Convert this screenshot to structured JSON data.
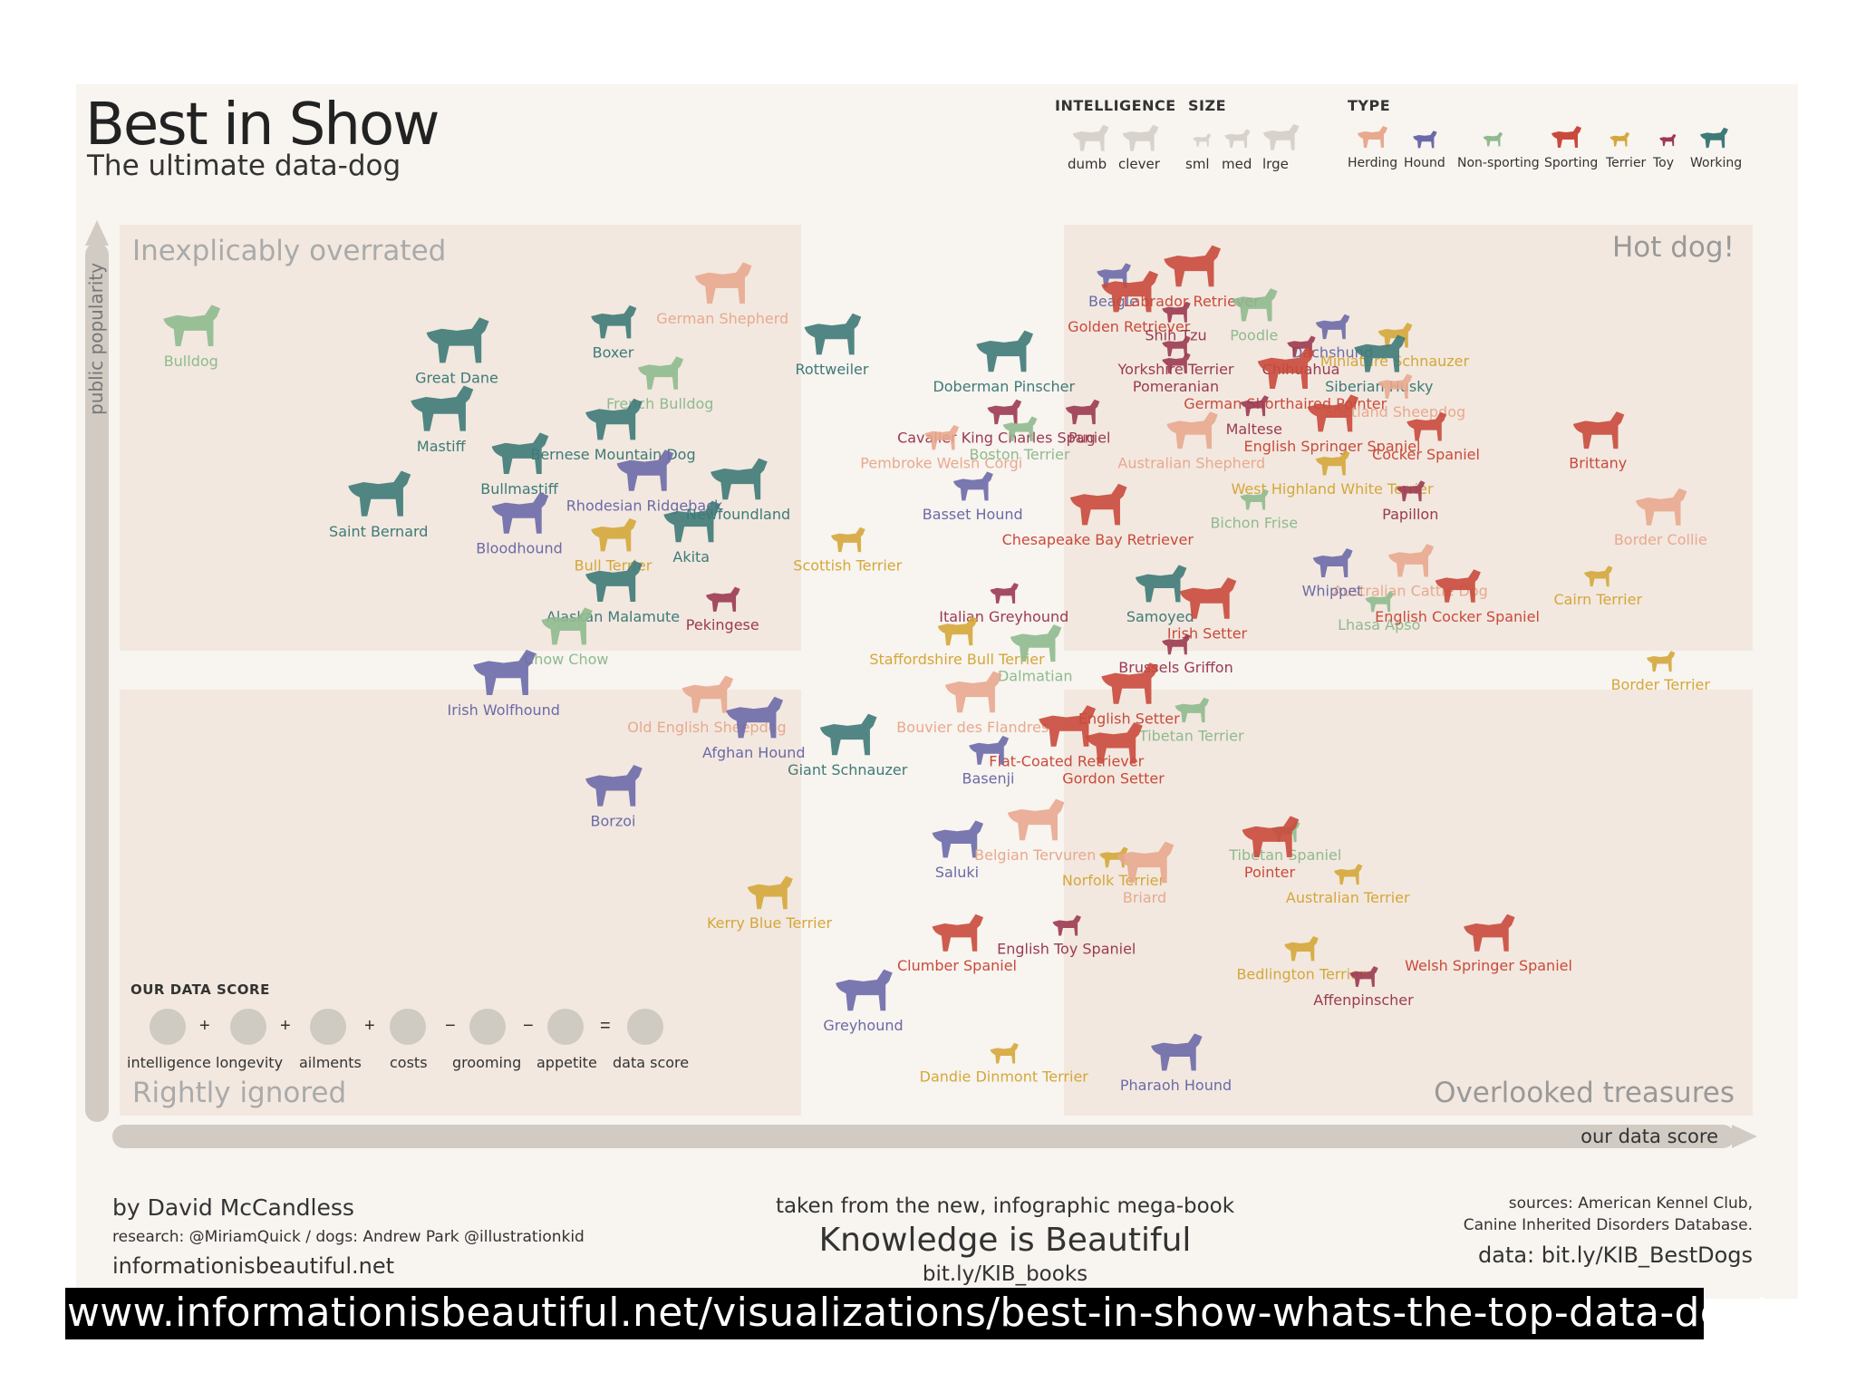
{
  "header": {
    "title": "Best in Show",
    "subtitle": "The ultimate data-dog"
  },
  "legend": {
    "intelligence_title": "INTELLIGENCE",
    "intelligence_items": [
      "dumb",
      "clever"
    ],
    "size_title": "SIZE",
    "size_items": [
      "sml",
      "med",
      "lrge"
    ],
    "type_title": "TYPE",
    "type_items": [
      {
        "label": "Herding",
        "color": "#e8a98f"
      },
      {
        "label": "Hound",
        "color": "#6b6aa8"
      },
      {
        "label": "Non-sporting",
        "color": "#8fba8f"
      },
      {
        "label": "Sporting",
        "color": "#c94a3c"
      },
      {
        "label": "Terrier",
        "color": "#d4a73a"
      },
      {
        "label": "Toy",
        "color": "#9b3a52"
      },
      {
        "label": "Working",
        "color": "#3e7a78"
      }
    ]
  },
  "data_score": {
    "title": "OUR DATA SCORE",
    "items": [
      "intelligence",
      "longevity",
      "ailments",
      "costs",
      "grooming",
      "appetite",
      "data score"
    ],
    "operators": [
      "+",
      "+",
      "+",
      "−",
      "−",
      "="
    ]
  },
  "footer": {
    "author": "by David McCandless",
    "research": "research: @MiriamQuick / dogs: Andrew Park @illustrationkid",
    "site": "informationisbeautiful.net",
    "book_intro": "taken from the new, infographic mega-book",
    "book_title": "Knowledge is Beautiful",
    "book_link": "bit.ly/KIB_books",
    "sources_line1": "sources: American Kennel Club,",
    "sources_line2": "Canine Inherited Disorders Database.",
    "data_link": "data: bit.ly/KIB_BestDogs"
  },
  "url_bar": "www.informationisbeautiful.net/visualizations/best-in-show-whats-the-top-data-dog/",
  "chart_data": {
    "type": "scatter",
    "xlabel": "our data score",
    "ylabel": "public popularity",
    "quadrants": {
      "top_left": "Inexplicably overrated",
      "top_right": "Hot dog!",
      "bottom_left": "Rightly ignored",
      "bottom_right": "Overlooked treasures"
    },
    "type_colors": {
      "Herding": "#e8a98f",
      "Hound": "#6b6aa8",
      "Non-sporting": "#8fba8f",
      "Sporting": "#c94a3c",
      "Terrier": "#d4a73a",
      "Toy": "#9b3a52",
      "Working": "#3e7a78"
    },
    "points": [
      {
        "label": "Bulldog",
        "type": "Non-sporting",
        "size": 1.0,
        "x": 0.03,
        "y": 0.88
      },
      {
        "label": "Great Dane",
        "type": "Working",
        "size": 1.1,
        "x": 0.2,
        "y": 0.86
      },
      {
        "label": "Mastiff",
        "type": "Working",
        "size": 1.1,
        "x": 0.19,
        "y": 0.78
      },
      {
        "label": "Bullmastiff",
        "type": "Working",
        "size": 1.0,
        "x": 0.24,
        "y": 0.73
      },
      {
        "label": "Boxer",
        "type": "Working",
        "size": 0.8,
        "x": 0.3,
        "y": 0.89
      },
      {
        "label": "German Shepherd",
        "type": "Herding",
        "size": 1.0,
        "x": 0.37,
        "y": 0.93
      },
      {
        "label": "French Bulldog",
        "type": "Non-sporting",
        "size": 0.8,
        "x": 0.33,
        "y": 0.83
      },
      {
        "label": "Bernese Mountain Dog",
        "type": "Working",
        "size": 1.0,
        "x": 0.3,
        "y": 0.77
      },
      {
        "label": "Rhodesian Ridgeback",
        "type": "Hound",
        "size": 1.0,
        "x": 0.32,
        "y": 0.71
      },
      {
        "label": "Newfoundland",
        "type": "Working",
        "size": 1.0,
        "x": 0.38,
        "y": 0.7
      },
      {
        "label": "Saint Bernard",
        "type": "Working",
        "size": 1.1,
        "x": 0.15,
        "y": 0.68
      },
      {
        "label": "Bloodhound",
        "type": "Hound",
        "size": 1.0,
        "x": 0.24,
        "y": 0.66
      },
      {
        "label": "Bull Terrier",
        "type": "Terrier",
        "size": 0.8,
        "x": 0.3,
        "y": 0.64
      },
      {
        "label": "Akita",
        "type": "Working",
        "size": 1.0,
        "x": 0.35,
        "y": 0.65
      },
      {
        "label": "Alaskan Malamute",
        "type": "Working",
        "size": 1.0,
        "x": 0.3,
        "y": 0.58
      },
      {
        "label": "Chow Chow",
        "type": "Non-sporting",
        "size": 0.9,
        "x": 0.27,
        "y": 0.53
      },
      {
        "label": "Pekingese",
        "type": "Toy",
        "size": 0.6,
        "x": 0.37,
        "y": 0.57
      },
      {
        "label": "Scottish Terrier",
        "type": "Terrier",
        "size": 0.6,
        "x": 0.45,
        "y": 0.64
      },
      {
        "label": "Rottweiler",
        "type": "Working",
        "size": 1.0,
        "x": 0.44,
        "y": 0.87
      },
      {
        "label": "Doberman Pinscher",
        "type": "Working",
        "size": 1.0,
        "x": 0.55,
        "y": 0.85
      },
      {
        "label": "Cavalier King Charles Spaniel",
        "type": "Toy",
        "size": 0.6,
        "x": 0.55,
        "y": 0.79
      },
      {
        "label": "Pembroke Welsh Corgi",
        "type": "Herding",
        "size": 0.6,
        "x": 0.51,
        "y": 0.76
      },
      {
        "label": "Boston Terrier",
        "type": "Non-sporting",
        "size": 0.6,
        "x": 0.56,
        "y": 0.77
      },
      {
        "label": "Pug",
        "type": "Toy",
        "size": 0.6,
        "x": 0.6,
        "y": 0.79
      },
      {
        "label": "Basset Hound",
        "type": "Hound",
        "size": 0.7,
        "x": 0.53,
        "y": 0.7
      },
      {
        "label": "Chesapeake Bay Retriever",
        "type": "Sporting",
        "size": 1.0,
        "x": 0.61,
        "y": 0.67
      },
      {
        "label": "Beagle",
        "type": "Hound",
        "size": 0.6,
        "x": 0.62,
        "y": 0.95
      },
      {
        "label": "Labrador Retriever",
        "type": "Sporting",
        "size": 1.0,
        "x": 0.67,
        "y": 0.95
      },
      {
        "label": "Golden Retriever",
        "type": "Sporting",
        "size": 1.0,
        "x": 0.63,
        "y": 0.92
      },
      {
        "label": "Shih Tzu",
        "type": "Toy",
        "size": 0.5,
        "x": 0.66,
        "y": 0.91
      },
      {
        "label": "Yorkshire Terrier",
        "type": "Toy",
        "size": 0.5,
        "x": 0.66,
        "y": 0.87
      },
      {
        "label": "Pomeranian",
        "type": "Toy",
        "size": 0.5,
        "x": 0.66,
        "y": 0.85
      },
      {
        "label": "Poodle",
        "type": "Non-sporting",
        "size": 0.8,
        "x": 0.71,
        "y": 0.91
      },
      {
        "label": "Dachshund",
        "type": "Hound",
        "size": 0.6,
        "x": 0.76,
        "y": 0.89
      },
      {
        "label": "Chihuahua",
        "type": "Toy",
        "size": 0.5,
        "x": 0.74,
        "y": 0.87
      },
      {
        "label": "Miniature Schnauzer",
        "type": "Terrier",
        "size": 0.6,
        "x": 0.8,
        "y": 0.88
      },
      {
        "label": "Siberian Husky",
        "type": "Working",
        "size": 0.9,
        "x": 0.79,
        "y": 0.85
      },
      {
        "label": "German Shorthaired Pointer",
        "type": "Sporting",
        "size": 1.0,
        "x": 0.73,
        "y": 0.83
      },
      {
        "label": "Maltese",
        "type": "Toy",
        "size": 0.5,
        "x": 0.71,
        "y": 0.8
      },
      {
        "label": "Australian Shepherd",
        "type": "Herding",
        "size": 0.9,
        "x": 0.67,
        "y": 0.76
      },
      {
        "label": "Shetland Sheepdog",
        "type": "Herding",
        "size": 0.6,
        "x": 0.8,
        "y": 0.82
      },
      {
        "label": "English Springer Spaniel",
        "type": "Sporting",
        "size": 0.9,
        "x": 0.76,
        "y": 0.78
      },
      {
        "label": "Cocker Spaniel",
        "type": "Sporting",
        "size": 0.7,
        "x": 0.82,
        "y": 0.77
      },
      {
        "label": "West Highland White Terrier",
        "type": "Terrier",
        "size": 0.6,
        "x": 0.76,
        "y": 0.73
      },
      {
        "label": "Brittany",
        "type": "Sporting",
        "size": 0.9,
        "x": 0.93,
        "y": 0.76
      },
      {
        "label": "Bichon Frise",
        "type": "Non-sporting",
        "size": 0.5,
        "x": 0.71,
        "y": 0.69
      },
      {
        "label": "Papillon",
        "type": "Toy",
        "size": 0.5,
        "x": 0.81,
        "y": 0.7
      },
      {
        "label": "Border Collie",
        "type": "Herding",
        "size": 0.9,
        "x": 0.97,
        "y": 0.67
      },
      {
        "label": "Australian Cattle Dog",
        "type": "Herding",
        "size": 0.8,
        "x": 0.81,
        "y": 0.61
      },
      {
        "label": "Whippet",
        "type": "Hound",
        "size": 0.7,
        "x": 0.76,
        "y": 0.61
      },
      {
        "label": "Lhasa Apso",
        "type": "Non-sporting",
        "size": 0.5,
        "x": 0.79,
        "y": 0.57
      },
      {
        "label": "English Cocker Spaniel",
        "type": "Sporting",
        "size": 0.8,
        "x": 0.84,
        "y": 0.58
      },
      {
        "label": "Cairn Terrier",
        "type": "Terrier",
        "size": 0.5,
        "x": 0.93,
        "y": 0.6
      },
      {
        "label": "Samoyed",
        "type": "Working",
        "size": 0.9,
        "x": 0.65,
        "y": 0.58
      },
      {
        "label": "Irish Setter",
        "type": "Sporting",
        "size": 1.0,
        "x": 0.68,
        "y": 0.56
      },
      {
        "label": "Italian Greyhound",
        "type": "Toy",
        "size": 0.5,
        "x": 0.55,
        "y": 0.58
      },
      {
        "label": "Staffordshire Bull Terrier",
        "type": "Terrier",
        "size": 0.7,
        "x": 0.52,
        "y": 0.53
      },
      {
        "label": "Dalmatian",
        "type": "Non-sporting",
        "size": 0.9,
        "x": 0.57,
        "y": 0.51
      },
      {
        "label": "Brussels Griffon",
        "type": "Toy",
        "size": 0.5,
        "x": 0.66,
        "y": 0.52
      },
      {
        "label": "Border Terrier",
        "type": "Terrier",
        "size": 0.5,
        "x": 0.97,
        "y": 0.5
      },
      {
        "label": "Irish Wolfhound",
        "type": "Hound",
        "size": 1.1,
        "x": 0.23,
        "y": 0.47
      },
      {
        "label": "Old English Sheepdog",
        "type": "Herding",
        "size": 0.9,
        "x": 0.36,
        "y": 0.45
      },
      {
        "label": "Afghan Hound",
        "type": "Hound",
        "size": 1.0,
        "x": 0.39,
        "y": 0.42
      },
      {
        "label": "Giant Schnauzer",
        "type": "Working",
        "size": 1.0,
        "x": 0.45,
        "y": 0.4
      },
      {
        "label": "Bouvier des Flandres",
        "type": "Herding",
        "size": 1.0,
        "x": 0.53,
        "y": 0.45
      },
      {
        "label": "English Setter",
        "type": "Sporting",
        "size": 1.0,
        "x": 0.63,
        "y": 0.46
      },
      {
        "label": "Tibetan Terrier",
        "type": "Non-sporting",
        "size": 0.6,
        "x": 0.67,
        "y": 0.44
      },
      {
        "label": "Flat-Coated Retriever",
        "type": "Sporting",
        "size": 1.0,
        "x": 0.59,
        "y": 0.41
      },
      {
        "label": "Basenji",
        "type": "Hound",
        "size": 0.7,
        "x": 0.54,
        "y": 0.39
      },
      {
        "label": "Gordon Setter",
        "type": "Sporting",
        "size": 1.0,
        "x": 0.62,
        "y": 0.39
      },
      {
        "label": "Borzoi",
        "type": "Hound",
        "size": 1.0,
        "x": 0.3,
        "y": 0.34
      },
      {
        "label": "Saluki",
        "type": "Hound",
        "size": 0.9,
        "x": 0.52,
        "y": 0.28
      },
      {
        "label": "Belgian Tervuren",
        "type": "Herding",
        "size": 1.0,
        "x": 0.57,
        "y": 0.3
      },
      {
        "label": "Norfolk Terrier",
        "type": "Terrier",
        "size": 0.5,
        "x": 0.62,
        "y": 0.27
      },
      {
        "label": "Briard",
        "type": "Herding",
        "size": 1.0,
        "x": 0.64,
        "y": 0.25
      },
      {
        "label": "Tibetan Spaniel",
        "type": "Non-sporting",
        "size": 0.5,
        "x": 0.73,
        "y": 0.3
      },
      {
        "label": "Pointer",
        "type": "Sporting",
        "size": 1.0,
        "x": 0.72,
        "y": 0.28
      },
      {
        "label": "Australian Terrier",
        "type": "Terrier",
        "size": 0.5,
        "x": 0.77,
        "y": 0.25
      },
      {
        "label": "Kerry Blue Terrier",
        "type": "Terrier",
        "size": 0.8,
        "x": 0.4,
        "y": 0.22
      },
      {
        "label": "Clumber Spaniel",
        "type": "Sporting",
        "size": 0.9,
        "x": 0.52,
        "y": 0.17
      },
      {
        "label": "English Toy Spaniel",
        "type": "Toy",
        "size": 0.5,
        "x": 0.59,
        "y": 0.19
      },
      {
        "label": "Bedlington Terrier",
        "type": "Terrier",
        "size": 0.6,
        "x": 0.74,
        "y": 0.16
      },
      {
        "label": "Affenpinscher",
        "type": "Toy",
        "size": 0.5,
        "x": 0.78,
        "y": 0.13
      },
      {
        "label": "Welsh Springer Spaniel",
        "type": "Sporting",
        "size": 0.9,
        "x": 0.86,
        "y": 0.17
      },
      {
        "label": "Greyhound",
        "type": "Hound",
        "size": 1.0,
        "x": 0.46,
        "y": 0.1
      },
      {
        "label": "Dandie Dinmont Terrier",
        "type": "Terrier",
        "size": 0.5,
        "x": 0.55,
        "y": 0.04
      },
      {
        "label": "Pharaoh Hound",
        "type": "Hound",
        "size": 0.9,
        "x": 0.66,
        "y": 0.03
      }
    ]
  }
}
